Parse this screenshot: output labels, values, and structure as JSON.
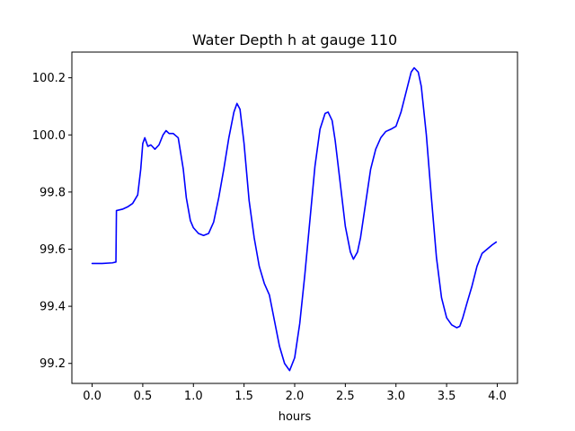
{
  "chart_data": {
    "type": "line",
    "title": "Water Depth h at gauge 110",
    "xlabel": "hours",
    "ylabel": "",
    "xlim": [
      -0.2,
      4.2
    ],
    "ylim": [
      99.13,
      100.29
    ],
    "x_ticks": [
      0.0,
      0.5,
      1.0,
      1.5,
      2.0,
      2.5,
      3.0,
      3.5,
      4.0
    ],
    "x_tick_labels": [
      "0.0",
      "0.5",
      "1.0",
      "1.5",
      "2.0",
      "2.5",
      "3.0",
      "3.5",
      "4.0"
    ],
    "y_ticks": [
      99.2,
      99.4,
      99.6,
      99.8,
      100.0,
      100.2
    ],
    "y_tick_labels": [
      "99.2",
      "99.4",
      "99.6",
      "99.8",
      "100.0",
      "100.2"
    ],
    "grid": false,
    "series": [
      {
        "color": "#0000ff",
        "x": [
          0.0,
          0.1,
          0.2,
          0.235,
          0.24,
          0.3,
          0.35,
          0.4,
          0.45,
          0.48,
          0.5,
          0.52,
          0.55,
          0.58,
          0.62,
          0.66,
          0.7,
          0.73,
          0.76,
          0.8,
          0.85,
          0.9,
          0.93,
          0.97,
          1.0,
          1.05,
          1.1,
          1.15,
          1.2,
          1.25,
          1.3,
          1.35,
          1.4,
          1.43,
          1.46,
          1.5,
          1.55,
          1.6,
          1.65,
          1.7,
          1.75,
          1.8,
          1.85,
          1.9,
          1.95,
          2.0,
          2.05,
          2.1,
          2.15,
          2.2,
          2.25,
          2.3,
          2.33,
          2.37,
          2.4,
          2.45,
          2.5,
          2.55,
          2.58,
          2.62,
          2.65,
          2.7,
          2.75,
          2.8,
          2.85,
          2.9,
          2.95,
          3.0,
          3.05,
          3.1,
          3.15,
          3.18,
          3.22,
          3.25,
          3.3,
          3.35,
          3.4,
          3.45,
          3.5,
          3.55,
          3.6,
          3.63,
          3.66,
          3.7,
          3.75,
          3.8,
          3.85,
          3.9,
          3.95,
          3.99
        ],
        "y": [
          99.55,
          99.55,
          99.552,
          99.555,
          99.735,
          99.74,
          99.748,
          99.76,
          99.79,
          99.88,
          99.97,
          99.99,
          99.96,
          99.965,
          99.95,
          99.965,
          100.0,
          100.015,
          100.005,
          100.005,
          99.99,
          99.88,
          99.78,
          99.7,
          99.675,
          99.655,
          99.648,
          99.655,
          99.695,
          99.78,
          99.88,
          99.99,
          100.08,
          100.11,
          100.09,
          99.97,
          99.77,
          99.64,
          99.54,
          99.48,
          99.44,
          99.35,
          99.26,
          99.2,
          99.175,
          99.22,
          99.34,
          99.51,
          99.7,
          99.89,
          100.02,
          100.075,
          100.08,
          100.05,
          99.98,
          99.83,
          99.68,
          99.59,
          99.565,
          99.59,
          99.64,
          99.76,
          99.88,
          99.95,
          99.99,
          100.012,
          100.02,
          100.03,
          100.08,
          100.15,
          100.22,
          100.235,
          100.22,
          100.17,
          100.0,
          99.78,
          99.57,
          99.43,
          99.36,
          99.335,
          99.325,
          99.33,
          99.36,
          99.41,
          99.47,
          99.54,
          99.585,
          99.6,
          99.615,
          99.625
        ]
      }
    ]
  }
}
